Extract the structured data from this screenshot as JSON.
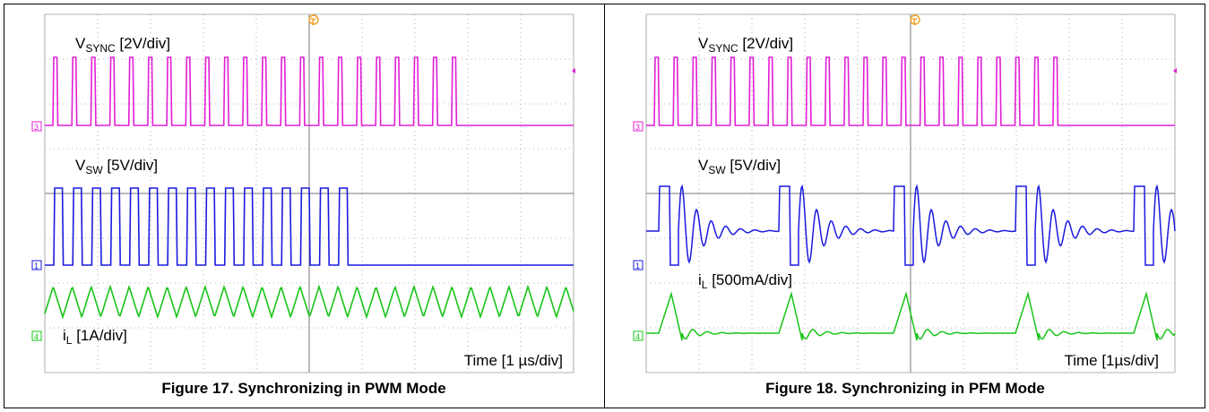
{
  "figures": [
    {
      "caption": "Figure 17. Synchronizing in PWM Mode",
      "labels": {
        "vsync": {
          "main": "V",
          "sub": "SYNC",
          "rest": " [2V/div]"
        },
        "vsw": {
          "main": "V",
          "sub": "SW",
          "rest": " [5V/div]"
        },
        "il": {
          "main": "i",
          "sub": "L",
          "rest": " [1A/div]"
        },
        "time": "Time [1 µs/div]"
      },
      "channel_markers": [
        "3",
        "1",
        "4"
      ],
      "trigger_marker": "T"
    },
    {
      "caption": "Figure 18. Synchronizing in PFM Mode",
      "labels": {
        "vsync": {
          "main": "V",
          "sub": "SYNC",
          "rest": " [2V/div]"
        },
        "vsw": {
          "main": "V",
          "sub": "SW",
          "rest": " [5V/div]"
        },
        "il": {
          "main": "i",
          "sub": "L",
          "rest": " [500mA/div]"
        },
        "time": "Time [1µs/div]"
      },
      "channel_markers": [
        "3",
        "1",
        "4"
      ],
      "trigger_marker": "T"
    }
  ],
  "colors": {
    "vsync": "#e11fd6",
    "vsw": "#1a1adf",
    "il": "#18c418",
    "grid": "#9a9a9a",
    "marker_trigger": "#f0a020"
  },
  "chart_data": [
    {
      "type": "line",
      "title": "Figure 17. Synchronizing in PWM Mode",
      "xlabel": "Time [1 µs/div]",
      "x_divisions": 10,
      "y_divisions": 8,
      "series": [
        {
          "name": "VSYNC [2V/div]",
          "waveform": "pulse",
          "period_div": 0.4,
          "duty": 0.25,
          "pulses": 22
        },
        {
          "name": "VSW [5V/div]",
          "waveform": "square",
          "period_div": 0.4,
          "duty": 0.5,
          "pulses": 15
        },
        {
          "name": "iL [1A/div]",
          "waveform": "triangle",
          "period_div": 0.4,
          "pulses": 16
        }
      ]
    },
    {
      "type": "line",
      "title": "Figure 18. Synchronizing in PFM Mode",
      "xlabel": "Time [1µs/div]",
      "x_divisions": 10,
      "y_divisions": 8,
      "series": [
        {
          "name": "VSYNC [2V/div]",
          "waveform": "pulse",
          "period_div": 0.4,
          "duty": 0.25,
          "pulses": 22
        },
        {
          "name": "VSW [5V/div]",
          "waveform": "pfm-burst-ringing",
          "bursts": 5
        },
        {
          "name": "iL [500mA/div]",
          "waveform": "pfm-triangle-ringing",
          "bursts": 5
        }
      ]
    }
  ]
}
